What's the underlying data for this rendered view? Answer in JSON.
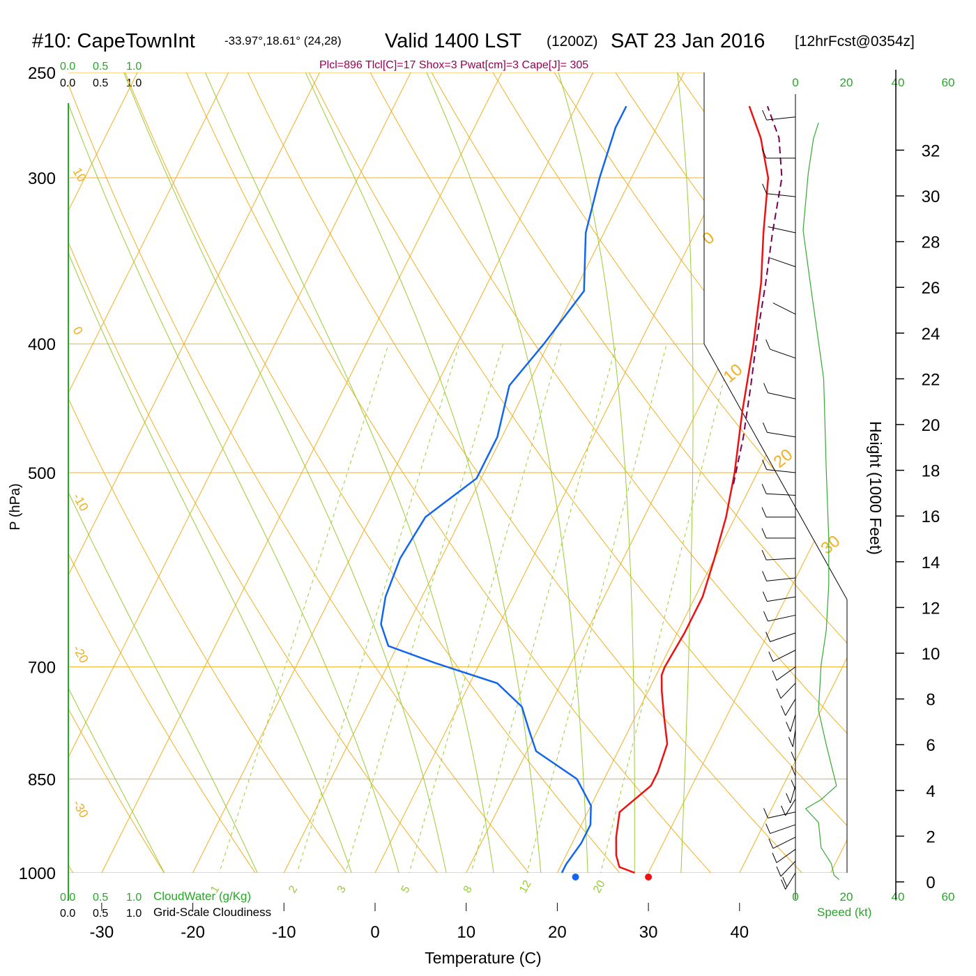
{
  "header": {
    "station": "#10: CapeTownInt",
    "coords": "-33.97°,18.61° (24,28)",
    "valid": "Valid 1400 LST",
    "utc": "(1200Z)",
    "date": "SAT 23 Jan 2016",
    "forecast": "[12hrFcst@0354z]",
    "indices": "Plcl=896 Tlcl[C]=17 Shox=3 Pwat[cm]=3 Cape[J]= 305"
  },
  "cloud_scales": {
    "ticks": [
      "0.0",
      "0.5",
      "1.0"
    ],
    "cloudwater_label": "CloudWater (g/Kg)",
    "cloudiness_label": "Grid-Scale Cloudiness"
  },
  "colors": {
    "isobar": "#f0b020",
    "isotherm": "#f0b020",
    "dry_adiabat": "#f0b020",
    "moist_adiabat": "#99cc33",
    "mixing_ratio": "#99cc33",
    "temperature": "#ee1111",
    "dewpoint": "#1166ee",
    "parcel": "#770055",
    "speed": "#33aa33",
    "green_text": "#22aa22",
    "indices_text": "#990055"
  },
  "chart_data": {
    "type": "line",
    "title": "#10: CapeTownInt  Valid 1400 LST (1200Z) SAT 23 Jan 2016",
    "xlabel": "Temperature (C)",
    "ylabel": "P (hPa)",
    "y2label": "Height (1000 Feet)",
    "xlim": [
      -34,
      36
    ],
    "ylim": [
      250,
      1000
    ],
    "y_scale": "log",
    "x_ticks": [
      "-30",
      "-20",
      "-10",
      "0",
      "10",
      "20",
      "30",
      "40"
    ],
    "pressure_levels": [
      "250",
      "300",
      "400",
      "500",
      "700",
      "850",
      "1000"
    ],
    "height_ticks": [
      "32",
      "30",
      "28",
      "26",
      "24",
      "22",
      "20",
      "18",
      "16",
      "14",
      "12",
      "10",
      "8",
      "6",
      "4",
      "2",
      "0"
    ],
    "isotherm_labels": [
      "10",
      "0",
      "-10",
      "-20",
      "-30",
      "0",
      "10",
      "20",
      "30"
    ],
    "mixing_ratio_labels": [
      "1",
      "2",
      "3",
      "5",
      "8",
      "12",
      "20"
    ],
    "speed_axis": {
      "label": "Speed (kt)",
      "ticks": [
        "0",
        "20",
        "40",
        "60"
      ]
    },
    "series": [
      {
        "name": "Temperature",
        "points": [
          [
            28.5,
            1000
          ],
          [
            26.5,
            990
          ],
          [
            25.5,
            970
          ],
          [
            24.5,
            940
          ],
          [
            23.5,
            900
          ],
          [
            24.5,
            880
          ],
          [
            25.5,
            860
          ],
          [
            25.5,
            840
          ],
          [
            25.0,
            800
          ],
          [
            23.0,
            760
          ],
          [
            21.5,
            730
          ],
          [
            20.6,
            710
          ],
          [
            20.5,
            700
          ],
          [
            20.8,
            660
          ],
          [
            20.8,
            620
          ],
          [
            20.0,
            580
          ],
          [
            19.0,
            540
          ],
          [
            17.5,
            500
          ],
          [
            15.0,
            450
          ],
          [
            12.5,
            400
          ],
          [
            10.0,
            360
          ],
          [
            7.5,
            330
          ],
          [
            5.0,
            300
          ],
          [
            2.0,
            280
          ],
          [
            -1.0,
            265
          ]
        ]
      },
      {
        "name": "Dewpoint",
        "points": [
          [
            20.5,
            1000
          ],
          [
            20.5,
            985
          ],
          [
            21.0,
            950
          ],
          [
            21.0,
            920
          ],
          [
            20.0,
            890
          ],
          [
            17.0,
            850
          ],
          [
            11.0,
            810
          ],
          [
            9.0,
            780
          ],
          [
            7.0,
            750
          ],
          [
            3.0,
            720
          ],
          [
            -5.0,
            695
          ],
          [
            -11.0,
            675
          ],
          [
            -13.0,
            650
          ],
          [
            -14.0,
            620
          ],
          [
            -14.5,
            580
          ],
          [
            -14.0,
            540
          ],
          [
            -10.5,
            505
          ],
          [
            -10.5,
            470
          ],
          [
            -12.0,
            430
          ],
          [
            -10.5,
            400
          ],
          [
            -9.0,
            365
          ],
          [
            -12.0,
            330
          ],
          [
            -13.5,
            300
          ],
          [
            -14.5,
            275
          ],
          [
            -14.5,
            265
          ]
        ]
      },
      {
        "name": "Parcel",
        "points": [
          [
            18.0,
            510
          ],
          [
            16.5,
            470
          ],
          [
            14.5,
            430
          ],
          [
            12.5,
            395
          ],
          [
            10.5,
            360
          ],
          [
            8.5,
            330
          ],
          [
            6.5,
            300
          ],
          [
            4.0,
            280
          ],
          [
            1.0,
            265
          ]
        ]
      }
    ],
    "surface_markers": [
      {
        "name": "T2m",
        "x": 30,
        "p": 1000
      },
      {
        "name": "Td2m",
        "x": 22,
        "p": 1000
      }
    ],
    "wind_speed_profile": [
      [
        17,
        0.1
      ],
      [
        15,
        0.3
      ],
      [
        14,
        0.8
      ],
      [
        10,
        1.5
      ],
      [
        9,
        2.6
      ],
      [
        4,
        3.2
      ],
      [
        10,
        3.6
      ],
      [
        16,
        4.2
      ],
      [
        12,
        6
      ],
      [
        9,
        7.5
      ],
      [
        10,
        9.5
      ],
      [
        12,
        11
      ],
      [
        13,
        13
      ],
      [
        13,
        15
      ],
      [
        12,
        18
      ],
      [
        11,
        22
      ],
      [
        6,
        26
      ],
      [
        3,
        28.5
      ],
      [
        5,
        31
      ],
      [
        7,
        32.5
      ],
      [
        9,
        33.2
      ]
    ],
    "wind_barbs": [
      [
        1000,
        200,
        15
      ],
      [
        980,
        210,
        14
      ],
      [
        960,
        220,
        12
      ],
      [
        940,
        230,
        10
      ],
      [
        920,
        240,
        8
      ],
      [
        900,
        250,
        6
      ],
      [
        880,
        200,
        8
      ],
      [
        860,
        190,
        12
      ],
      [
        840,
        180,
        14
      ],
      [
        820,
        180,
        13
      ],
      [
        800,
        180,
        12
      ],
      [
        780,
        185,
        11
      ],
      [
        760,
        190,
        11
      ],
      [
        740,
        200,
        12
      ],
      [
        720,
        210,
        12
      ],
      [
        700,
        220,
        12
      ],
      [
        680,
        230,
        12
      ],
      [
        660,
        240,
        13
      ],
      [
        640,
        250,
        13
      ],
      [
        620,
        255,
        13
      ],
      [
        600,
        260,
        13
      ],
      [
        580,
        265,
        12
      ],
      [
        560,
        270,
        12
      ],
      [
        540,
        270,
        12
      ],
      [
        520,
        275,
        11
      ],
      [
        500,
        280,
        10
      ],
      [
        470,
        285,
        9
      ],
      [
        440,
        290,
        7
      ],
      [
        410,
        300,
        5
      ],
      [
        380,
        310,
        3
      ],
      [
        350,
        300,
        2
      ],
      [
        330,
        290,
        4
      ],
      [
        310,
        280,
        6
      ],
      [
        290,
        270,
        7
      ],
      [
        270,
        260,
        9
      ]
    ]
  }
}
